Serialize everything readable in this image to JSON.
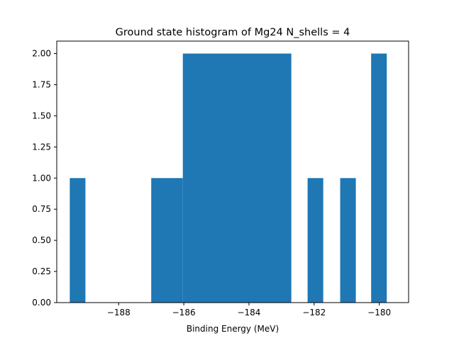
{
  "chart_data": {
    "type": "bar",
    "subtype": "histogram",
    "title": "Ground state histogram of Mg24 N_shells = 4",
    "xlabel": "Binding Energy (MeV)",
    "ylabel": "",
    "bar_color": "#1f77b4",
    "xlim": [
      -189.9,
      -179.1
    ],
    "ylim": [
      0,
      2.1
    ],
    "x_ticks": [
      -188,
      -186,
      -184,
      -182,
      -180
    ],
    "x_tick_labels": [
      "−188",
      "−186",
      "−184",
      "−182",
      "−180"
    ],
    "y_ticks": [
      0,
      0.25,
      0.5,
      0.75,
      1.0,
      1.25,
      1.5,
      1.75,
      2.0
    ],
    "y_tick_labels": [
      "0.00",
      "0.25",
      "0.50",
      "0.75",
      "1.00",
      "1.25",
      "1.50",
      "1.75",
      "2.00"
    ],
    "bins": [
      {
        "x0": -189.5,
        "x1": -189.02,
        "count": 1
      },
      {
        "x0": -189.02,
        "x1": -188.53,
        "count": 0
      },
      {
        "x0": -188.53,
        "x1": -188.05,
        "count": 0
      },
      {
        "x0": -188.05,
        "x1": -187.57,
        "count": 0
      },
      {
        "x0": -187.57,
        "x1": -187.0,
        "count": 0
      },
      {
        "x0": -187.0,
        "x1": -186.03,
        "count": 1
      },
      {
        "x0": -186.03,
        "x1": -182.7,
        "count": 2
      },
      {
        "x0": -182.7,
        "x1": -182.2,
        "count": 0
      },
      {
        "x0": -182.2,
        "x1": -181.72,
        "count": 1
      },
      {
        "x0": -181.72,
        "x1": -181.2,
        "count": 0
      },
      {
        "x0": -181.2,
        "x1": -180.72,
        "count": 1
      },
      {
        "x0": -180.72,
        "x1": -180.25,
        "count": 0
      },
      {
        "x0": -180.25,
        "x1": -179.77,
        "count": 2
      }
    ],
    "grid": false,
    "legend": "none"
  }
}
